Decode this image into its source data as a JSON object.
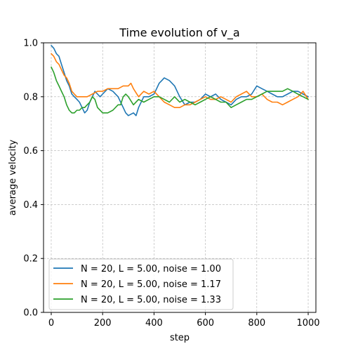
{
  "chart_data": {
    "type": "line",
    "title": "Time evolution of v_a",
    "xlabel": "step",
    "ylabel": "average velocity",
    "xlim": [
      -30,
      1030
    ],
    "ylim": [
      0.0,
      1.0
    ],
    "xticks": [
      0,
      200,
      400,
      600,
      800,
      1000
    ],
    "yticks": [
      0.0,
      0.2,
      0.4,
      0.6,
      0.8,
      1.0
    ],
    "xtick_labels": [
      "0",
      "200",
      "400",
      "600",
      "800",
      "1000"
    ],
    "ytick_labels": [
      "0.0",
      "0.2",
      "0.4",
      "0.6",
      "0.8",
      "1.0"
    ],
    "grid": true,
    "legend_position": "lower-left",
    "series": [
      {
        "name": "N = 20, L = 5.00, noise = 1.00",
        "color": "#1f77b4",
        "x": [
          0,
          10,
          20,
          30,
          40,
          50,
          60,
          70,
          80,
          90,
          100,
          110,
          120,
          130,
          140,
          150,
          160,
          170,
          180,
          190,
          200,
          220,
          240,
          260,
          280,
          290,
          300,
          320,
          330,
          340,
          360,
          380,
          400,
          410,
          420,
          430,
          440,
          460,
          480,
          500,
          520,
          540,
          560,
          580,
          600,
          620,
          640,
          660,
          680,
          700,
          720,
          740,
          760,
          780,
          800,
          820,
          840,
          860,
          880,
          900,
          920,
          940,
          960,
          980,
          1000
        ],
        "y": [
          0.99,
          0.98,
          0.96,
          0.95,
          0.92,
          0.89,
          0.86,
          0.84,
          0.81,
          0.8,
          0.79,
          0.78,
          0.76,
          0.74,
          0.75,
          0.78,
          0.8,
          0.82,
          0.81,
          0.8,
          0.81,
          0.83,
          0.82,
          0.8,
          0.76,
          0.74,
          0.73,
          0.74,
          0.73,
          0.76,
          0.8,
          0.8,
          0.81,
          0.83,
          0.85,
          0.86,
          0.87,
          0.86,
          0.84,
          0.8,
          0.77,
          0.78,
          0.78,
          0.79,
          0.81,
          0.8,
          0.81,
          0.79,
          0.78,
          0.77,
          0.79,
          0.8,
          0.8,
          0.81,
          0.84,
          0.83,
          0.82,
          0.81,
          0.8,
          0.8,
          0.81,
          0.82,
          0.82,
          0.81,
          0.8
        ]
      },
      {
        "name": "N = 20, L = 5.00, noise = 1.17",
        "color": "#ff7f0e",
        "x": [
          0,
          10,
          20,
          30,
          40,
          50,
          60,
          70,
          80,
          90,
          100,
          120,
          140,
          160,
          180,
          200,
          220,
          240,
          260,
          280,
          300,
          310,
          320,
          340,
          360,
          380,
          400,
          420,
          440,
          460,
          480,
          500,
          520,
          540,
          560,
          580,
          600,
          620,
          640,
          660,
          680,
          700,
          720,
          740,
          760,
          780,
          800,
          820,
          840,
          860,
          880,
          900,
          920,
          940,
          960,
          980,
          1000
        ],
        "y": [
          0.96,
          0.95,
          0.93,
          0.92,
          0.9,
          0.88,
          0.87,
          0.85,
          0.82,
          0.81,
          0.8,
          0.8,
          0.8,
          0.81,
          0.82,
          0.82,
          0.83,
          0.83,
          0.83,
          0.84,
          0.84,
          0.85,
          0.83,
          0.8,
          0.82,
          0.81,
          0.82,
          0.8,
          0.78,
          0.77,
          0.76,
          0.76,
          0.77,
          0.77,
          0.78,
          0.79,
          0.8,
          0.79,
          0.79,
          0.8,
          0.79,
          0.78,
          0.8,
          0.81,
          0.82,
          0.8,
          0.8,
          0.81,
          0.79,
          0.78,
          0.78,
          0.77,
          0.78,
          0.79,
          0.8,
          0.82,
          0.79
        ]
      },
      {
        "name": "N = 20, L = 5.00, noise = 1.33",
        "color": "#2ca02c",
        "x": [
          0,
          10,
          20,
          30,
          40,
          50,
          60,
          70,
          80,
          90,
          100,
          110,
          120,
          130,
          140,
          150,
          160,
          170,
          180,
          200,
          220,
          240,
          260,
          270,
          280,
          290,
          300,
          320,
          340,
          360,
          380,
          400,
          420,
          440,
          460,
          480,
          500,
          520,
          540,
          560,
          580,
          600,
          620,
          640,
          660,
          680,
          700,
          720,
          740,
          760,
          780,
          800,
          820,
          840,
          860,
          880,
          900,
          920,
          940,
          960,
          980,
          1000
        ],
        "y": [
          0.91,
          0.89,
          0.86,
          0.84,
          0.82,
          0.8,
          0.77,
          0.75,
          0.74,
          0.74,
          0.75,
          0.75,
          0.76,
          0.76,
          0.77,
          0.78,
          0.8,
          0.79,
          0.76,
          0.74,
          0.74,
          0.75,
          0.77,
          0.77,
          0.8,
          0.81,
          0.8,
          0.77,
          0.79,
          0.78,
          0.79,
          0.8,
          0.8,
          0.79,
          0.78,
          0.8,
          0.78,
          0.79,
          0.78,
          0.77,
          0.78,
          0.79,
          0.8,
          0.79,
          0.78,
          0.78,
          0.76,
          0.77,
          0.78,
          0.79,
          0.79,
          0.8,
          0.81,
          0.82,
          0.82,
          0.82,
          0.82,
          0.83,
          0.82,
          0.81,
          0.8,
          0.79
        ]
      }
    ]
  }
}
